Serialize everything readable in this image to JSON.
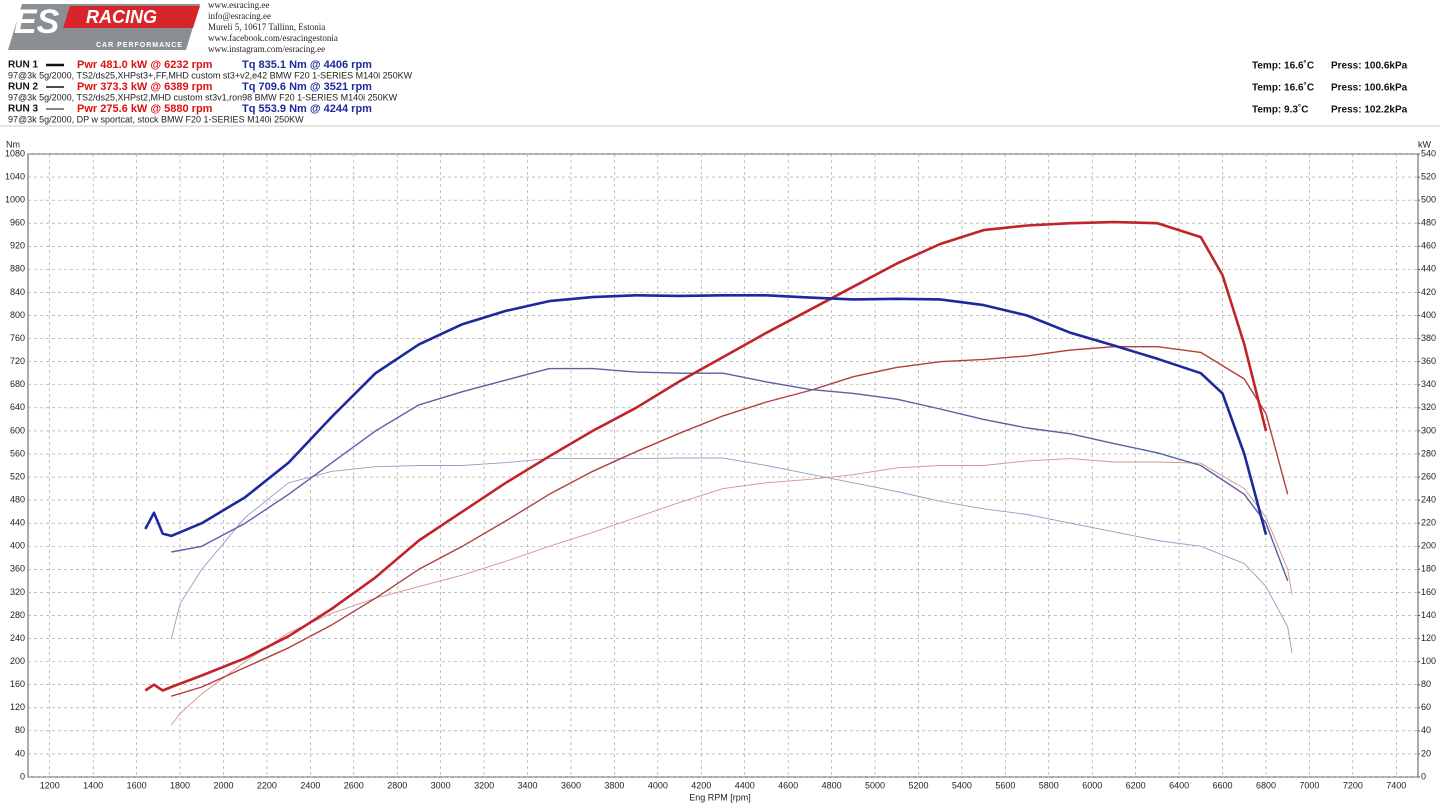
{
  "header": {
    "logo_main": "ES",
    "logo_racing": "RACING",
    "logo_sub": "CAR PERFORMANCE",
    "contact": [
      "www.esracing.ee",
      "info@esracing.ee",
      "Mureli 5, 10617 Tallinn, Estonia",
      "www.facebook.com/esracingestonia",
      "www.instagram.com/esracing.ee"
    ]
  },
  "chart_data": {
    "type": "line",
    "x_label": "Eng RPM [rpm]",
    "y_label": "Nm",
    "y2_label": "kW",
    "xlim": [
      1100,
      7500
    ],
    "xticks": [
      1200,
      1400,
      1600,
      1800,
      2000,
      2200,
      2400,
      2600,
      2800,
      3000,
      3200,
      3400,
      3600,
      3800,
      4000,
      4200,
      4400,
      4600,
      4800,
      5000,
      5200,
      5400,
      5600,
      5800,
      6000,
      6200,
      6400,
      6600,
      6800,
      7000,
      7200,
      7400
    ],
    "ylim": [
      0,
      1080
    ],
    "yticks": [
      0,
      40,
      80,
      120,
      160,
      200,
      240,
      280,
      320,
      360,
      400,
      440,
      480,
      520,
      560,
      600,
      640,
      680,
      720,
      760,
      800,
      840,
      880,
      920,
      960,
      1000,
      1040,
      1080
    ],
    "y2lim": [
      0,
      540
    ],
    "y2ticks": [
      0,
      20,
      40,
      60,
      80,
      100,
      120,
      140,
      160,
      180,
      200,
      220,
      240,
      260,
      280,
      300,
      320,
      340,
      360,
      380,
      400,
      420,
      440,
      460,
      480,
      500,
      520,
      540
    ],
    "grid": true,
    "series": [
      {
        "name": "RUN 1",
        "power_label": "Pwr  481.0 kW @ 6232 rpm",
        "torque_label": "Tq 835.1 Nm @ 4406 rpm",
        "description": "97@3k 5g/2000, TS2/ds25,XHPst3+,FF,MHD custom st3+v2,e42 BMW F20 1-SERIES M140i 250KW",
        "temp": "Temp: 16.6˚C",
        "press": "Press: 100.6kPa",
        "x": [
          1640,
          1680,
          1720,
          1760,
          1900,
          2100,
          2300,
          2500,
          2700,
          2900,
          3100,
          3300,
          3500,
          3700,
          3900,
          4100,
          4300,
          4500,
          4700,
          4900,
          5100,
          5300,
          5500,
          5700,
          5900,
          6100,
          6300,
          6500,
          6600,
          6700,
          6800
        ],
        "torque": {
          "color": "#1c2a9c",
          "values": [
            430,
            458,
            422,
            418,
            440,
            485,
            545,
            625,
            700,
            750,
            785,
            808,
            825,
            832,
            835,
            834,
            835,
            835,
            831,
            828,
            829,
            828,
            818,
            800,
            770,
            748,
            725,
            700,
            665,
            560,
            420
          ]
        },
        "power": {
          "color": "#c0242a",
          "values": [
            75,
            80,
            75,
            78,
            88,
            103,
            122,
            146,
            173,
            205,
            230,
            255,
            278,
            300,
            320,
            343,
            364,
            385,
            405,
            425,
            445,
            462,
            474,
            478,
            480,
            481,
            480,
            468,
            435,
            375,
            300
          ]
        }
      },
      {
        "name": "RUN 2",
        "power_label": "Pwr  373.3 kW @ 6389 rpm",
        "torque_label": "Tq 709.6 Nm @ 3521 rpm",
        "description": "97@3k 5g/2000, TS2/ds25,XHPst2,MHD custom st3v1,ron98 BMW F20 1-SERIES M140i 250KW",
        "temp": "Temp: 16.6˚C",
        "press": "Press: 100.6kPa",
        "x": [
          1760,
          1900,
          2100,
          2300,
          2500,
          2700,
          2900,
          3100,
          3300,
          3500,
          3700,
          3900,
          4100,
          4300,
          4500,
          4700,
          4900,
          5100,
          5300,
          5500,
          5700,
          5900,
          6100,
          6300,
          6500,
          6700,
          6800,
          6900
        ],
        "torque": {
          "color": "#5a5fa6",
          "values": [
            390,
            400,
            440,
            490,
            545,
            600,
            645,
            668,
            688,
            708,
            708,
            702,
            700,
            700,
            685,
            672,
            665,
            655,
            638,
            620,
            605,
            595,
            578,
            562,
            540,
            490,
            440,
            340
          ]
        },
        "power": {
          "color": "#b0403e",
          "values": [
            70,
            78,
            95,
            112,
            132,
            155,
            180,
            200,
            222,
            245,
            265,
            282,
            298,
            313,
            325,
            335,
            347,
            355,
            360,
            362,
            365,
            370,
            373,
            373,
            368,
            345,
            315,
            245
          ]
        }
      },
      {
        "name": "RUN 3",
        "power_label": "Pwr  275.6 kW @ 5880 rpm",
        "torque_label": "Tq 553.9 Nm @ 4244 rpm",
        "description": "97@3k 5g/2000, DP w sportcat, stock BMW F20 1-SERIES M140i 250KW",
        "temp": "Temp: 9.3˚C",
        "press": "Press: 102.2kPa",
        "x": [
          1760,
          1800,
          1900,
          2100,
          2300,
          2500,
          2700,
          2900,
          3100,
          3300,
          3500,
          3700,
          3900,
          4100,
          4300,
          4500,
          4700,
          4900,
          5100,
          5300,
          5500,
          5700,
          5900,
          6100,
          6300,
          6500,
          6700,
          6800,
          6900,
          6920
        ],
        "torque": {
          "color": "#9a9cc4",
          "values": [
            240,
            300,
            360,
            450,
            510,
            530,
            538,
            540,
            540,
            545,
            552,
            552,
            552,
            553,
            553,
            540,
            525,
            510,
            495,
            478,
            465,
            455,
            440,
            425,
            410,
            400,
            370,
            330,
            260,
            215
          ]
        },
        "power": {
          "color": "#d29490",
          "values": [
            45,
            55,
            72,
            100,
            125,
            142,
            155,
            165,
            175,
            187,
            200,
            212,
            225,
            238,
            250,
            255,
            258,
            262,
            268,
            270,
            270,
            274,
            276,
            273,
            273,
            272,
            250,
            225,
            180,
            158
          ]
        }
      }
    ]
  }
}
